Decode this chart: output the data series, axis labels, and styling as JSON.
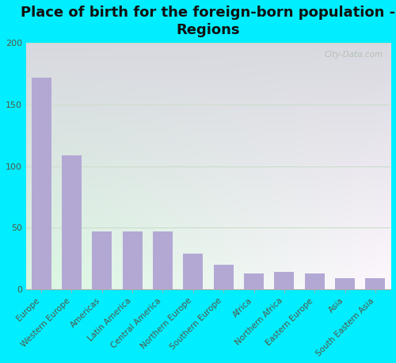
{
  "title": "Place of birth for the foreign-born population -\nRegions",
  "categories": [
    "Europe",
    "Western Europe",
    "Americas",
    "Latin America",
    "Central America",
    "Northern Europe",
    "Southern Europe",
    "Africa",
    "Northern Africa",
    "Eastern Europe",
    "Asia",
    "South Eastern Asia"
  ],
  "values": [
    172,
    109,
    47,
    47,
    47,
    29,
    20,
    13,
    14,
    13,
    9,
    9
  ],
  "bar_color": "#b3a8d4",
  "ylim": [
    0,
    200
  ],
  "yticks": [
    0,
    50,
    100,
    150,
    200
  ],
  "grad_top_left": "#b8e8b8",
  "grad_bottom_right": "#f8fff8",
  "outer_bg": "#00eeff",
  "title_fontsize": 13,
  "tick_fontsize": 7.5,
  "watermark": "City-Data.com",
  "grid_color": "#ccddcc",
  "label_color": "#555544"
}
